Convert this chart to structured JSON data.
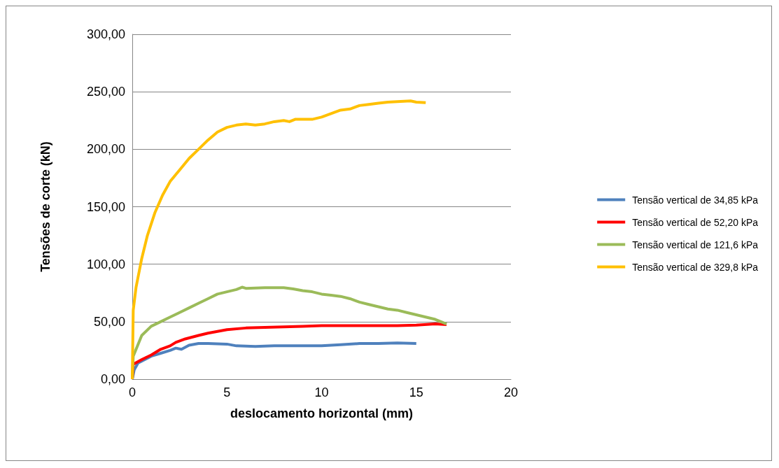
{
  "chart_data": {
    "type": "line",
    "xlabel": "deslocamento horizontal (mm)",
    "ylabel": "Tensões de corte (kN)",
    "xlim": [
      0,
      20
    ],
    "xticks": [
      0,
      5,
      10,
      15,
      20
    ],
    "ylim": [
      0,
      300
    ],
    "yticks": [
      {
        "value": 0,
        "label": "0,00"
      },
      {
        "value": 50,
        "label": "50,00"
      },
      {
        "value": 100,
        "label": "100,00"
      },
      {
        "value": 150,
        "label": "150,00"
      },
      {
        "value": 200,
        "label": "200,00"
      },
      {
        "value": 250,
        "label": "250,00"
      },
      {
        "value": 300,
        "label": "300,00"
      }
    ],
    "grid": "y",
    "legend": "right",
    "marker": "none",
    "line_style": "solid",
    "series": [
      {
        "name": "Tensão vertical de 34,85 kPa",
        "color": "#4f81bd",
        "x": [
          0,
          0.1,
          0.3,
          1,
          1.5,
          2,
          2.3,
          2.6,
          3,
          3.5,
          4,
          5,
          5.5,
          6.5,
          7.5,
          9,
          10,
          11,
          12,
          13,
          14,
          15
        ],
        "values": [
          0,
          8,
          14,
          20,
          22.5,
          25,
          27,
          26,
          29.5,
          31,
          31,
          30.5,
          29,
          28.5,
          29,
          29,
          29,
          30,
          31,
          31,
          31.5,
          31
        ]
      },
      {
        "name": "Tensão vertical de 52,20 kPa",
        "color": "#ff0000",
        "x": [
          0,
          0.05,
          0.5,
          1,
          1.5,
          2,
          2.3,
          2.8,
          3.5,
          4,
          5,
          6,
          7,
          8,
          9,
          10,
          11,
          12,
          13,
          14,
          15,
          16,
          16.6
        ],
        "values": [
          0,
          13,
          17,
          21,
          26,
          29,
          32,
          35,
          38,
          40,
          43,
          44.5,
          45,
          45.5,
          46,
          46.5,
          46.5,
          46.5,
          46.5,
          46.5,
          47,
          48,
          47.5
        ]
      },
      {
        "name": "Tensão vertical de 121,6 kPa",
        "color": "#9bbb59",
        "x": [
          0,
          0.05,
          0.3,
          0.5,
          1,
          1.5,
          2,
          2.5,
          3,
          3.5,
          4,
          4.5,
          5,
          5.5,
          5.8,
          6,
          7,
          8,
          8.5,
          9,
          9.5,
          10,
          10.5,
          11,
          11.5,
          12,
          12.5,
          13,
          13.5,
          14,
          14.5,
          15,
          15.5,
          16,
          16.6
        ],
        "values": [
          0,
          20,
          30,
          38,
          46,
          50,
          54,
          58,
          62,
          66,
          70,
          74,
          76,
          78,
          80,
          79,
          79.5,
          79.5,
          78.5,
          77,
          76,
          74,
          73,
          72,
          70,
          67,
          65,
          63,
          61,
          60,
          58,
          56,
          54,
          52,
          48
        ]
      },
      {
        "name": "Tensão vertical de 329,8 kPa",
        "color": "#ffc000",
        "x": [
          0,
          0.05,
          0.2,
          0.5,
          0.8,
          1.2,
          1.6,
          2,
          2.5,
          3,
          3.5,
          4,
          4.5,
          5,
          5.5,
          6,
          6.5,
          7,
          7.5,
          8,
          8.3,
          8.6,
          9.5,
          10,
          10.5,
          11,
          11.5,
          12,
          12.5,
          13,
          13.5,
          14,
          14.7,
          15,
          15.5
        ],
        "values": [
          0,
          60,
          80,
          105,
          125,
          145,
          160,
          172,
          182,
          192,
          200,
          208,
          215,
          219,
          221,
          222,
          221,
          222,
          224,
          225,
          224,
          226,
          226,
          228,
          231,
          234,
          235,
          238,
          239,
          240,
          241,
          241.5,
          242,
          241,
          240.5
        ]
      }
    ]
  }
}
